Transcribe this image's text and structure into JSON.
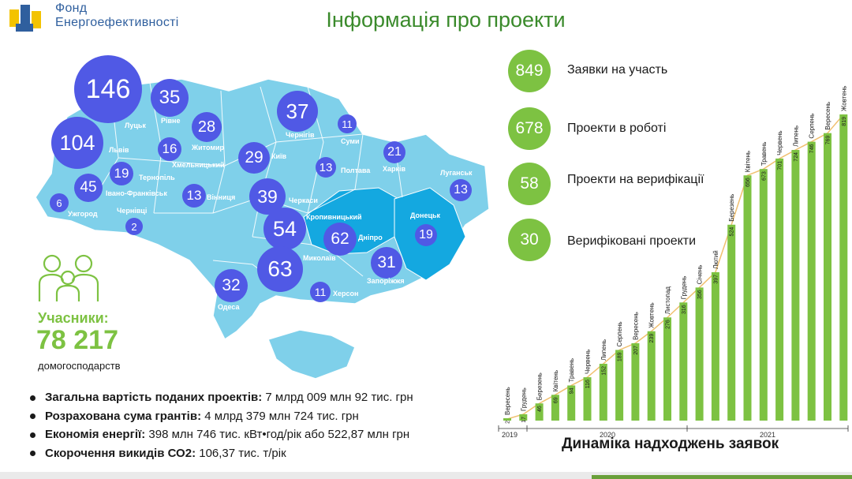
{
  "header": {
    "logo_line1": "Фонд",
    "logo_line2": "Енергоефективності",
    "title": "Інформація про проекти"
  },
  "map": {
    "fill_color": "#7fd0ea",
    "highlight_color": "#14a8e0",
    "bubble_color": "#5059e5",
    "oblasts": [
      {
        "name": "Луцьк",
        "value": "146"
      },
      {
        "name": "Рівне",
        "value": "35"
      },
      {
        "name": "Житомир",
        "value": "28"
      },
      {
        "name": "Львів",
        "value": "104"
      },
      {
        "name": "Хмельницький",
        "value": "16"
      },
      {
        "name": "Тернопіль",
        "value": "19"
      },
      {
        "name": "Івано-Франківськ",
        "value": "45"
      },
      {
        "name": "Ужгород",
        "value": "6"
      },
      {
        "name": "Чернівці",
        "value": "2"
      },
      {
        "name": "Вінниця",
        "value": "13"
      },
      {
        "name": "Київ",
        "value": "29"
      },
      {
        "name": "Чернігів",
        "value": "37"
      },
      {
        "name": "Суми",
        "value": "11"
      },
      {
        "name": "Полтава",
        "value": "13"
      },
      {
        "name": "Харків",
        "value": "21"
      },
      {
        "name": "Луганськ",
        "value": "13"
      },
      {
        "name": "Черкаси",
        "value": "39"
      },
      {
        "name": "Кропивницький",
        "value": "54"
      },
      {
        "name": "Дніпро",
        "value": "62"
      },
      {
        "name": "Донецьк",
        "value": "19"
      },
      {
        "name": "Миколаїв",
        "value": "63"
      },
      {
        "name": "Запоріжжя",
        "value": "31"
      },
      {
        "name": "Одеса",
        "value": "32"
      },
      {
        "name": "Херсон",
        "value": "11"
      }
    ]
  },
  "participants": {
    "label": "Учасники:",
    "value": "78 217",
    "unit": "домогосподарств"
  },
  "stats": [
    {
      "value": "849",
      "label": "Заявки на участь"
    },
    {
      "value": "678",
      "label": "Проекти в роботі"
    },
    {
      "value": "58",
      "label": "Проекти на верифікації"
    },
    {
      "value": "30",
      "label": "Верифіковані проекти"
    }
  ],
  "bullets": [
    {
      "bold": "Загальна вартість поданих проектів:",
      "text": " 7 млрд 009 млн 92 тис. грн"
    },
    {
      "bold": "Розрахована сума грантів:",
      "text": " 4 млрд 379 млн 724 тис. грн"
    },
    {
      "bold": "Економія енергії:",
      "text": " 398 млн 746 тис. кВт•год/рік або 522,87 млн грн"
    },
    {
      "bold": "Скорочення викидів СО2:",
      "text": " 106,37 тис. т/рік"
    }
  ],
  "chart_data": {
    "type": "bar",
    "title": "Динаміка надходжень заявок",
    "categories": [
      "Вересень",
      "Грудень",
      "Березень",
      "Квітень",
      "Травень",
      "Червень",
      "Липень",
      "Серпень",
      "Вересень",
      "Жовтень",
      "Листопад",
      "Грудень",
      "Січень",
      "Лютий",
      "Березень",
      "Квітень",
      "Травень",
      "Червень",
      "Липень",
      "Серпень",
      "Вересень",
      "Жовтень"
    ],
    "values": [
      2,
      17,
      46,
      69,
      94,
      116,
      152,
      189,
      207,
      239,
      276,
      316,
      356,
      397,
      524,
      656,
      673,
      701,
      724,
      746,
      769,
      819
    ],
    "years": [
      "2019",
      "2020",
      "2021"
    ],
    "bar_color": "#7dc242",
    "line_color": "#f0c070"
  }
}
